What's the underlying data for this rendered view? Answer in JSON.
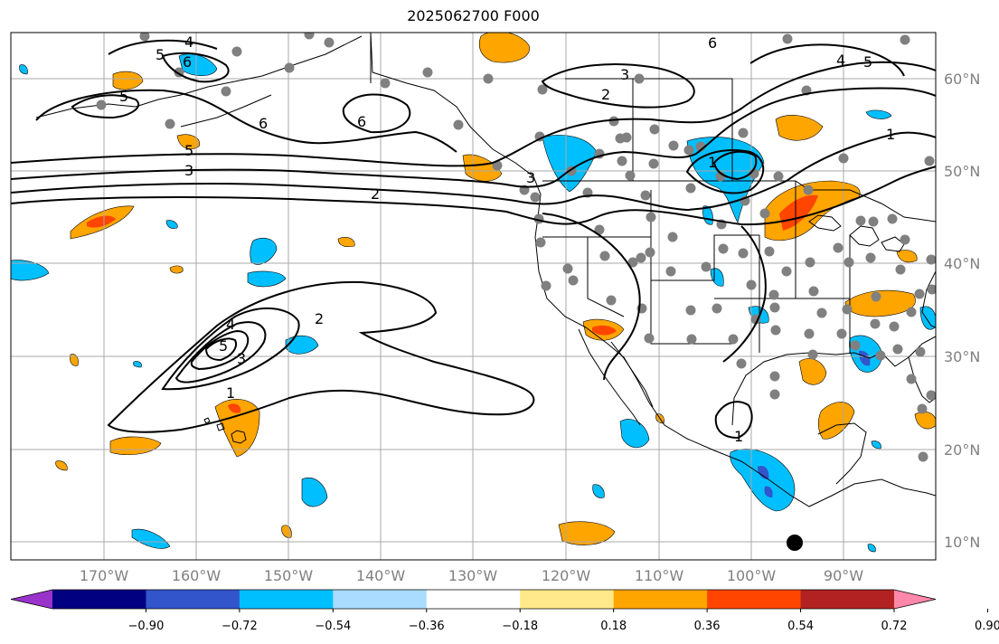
{
  "title": "2025062700 F000",
  "map": {
    "lon_labels": [
      "170°W",
      "160°W",
      "150°W",
      "140°W",
      "130°W",
      "120°W",
      "110°W",
      "100°W",
      "90°W"
    ],
    "lat_labels": [
      "60°N",
      "50°N",
      "40°N",
      "30°N",
      "20°N",
      "10°N"
    ],
    "gridline_color": "#a9a9a9",
    "coastline_color": "#000000",
    "station_marker_color": "#808080",
    "location_marker_color": "#000000",
    "contour_color": "#000000",
    "contour_labels": [
      {
        "text": "4",
        "id": "c4a"
      },
      {
        "text": "5",
        "id": "c5a"
      },
      {
        "text": "6",
        "id": "c6a"
      },
      {
        "text": "5",
        "id": "c5b"
      },
      {
        "text": "6",
        "id": "c6b"
      },
      {
        "text": "5",
        "id": "c5c"
      },
      {
        "text": "3",
        "id": "c3a"
      },
      {
        "text": "6",
        "id": "c6c"
      },
      {
        "text": "2",
        "id": "c2a"
      },
      {
        "text": "3",
        "id": "c3b"
      },
      {
        "text": "2",
        "id": "c2b"
      },
      {
        "text": "1",
        "id": "c1a"
      },
      {
        "text": "6",
        "id": "c6d"
      },
      {
        "text": "4",
        "id": "c4b"
      },
      {
        "text": "5",
        "id": "c5d"
      },
      {
        "text": "1",
        "id": "c1b"
      },
      {
        "text": "2",
        "id": "c2c"
      },
      {
        "text": "3",
        "id": "c3c"
      },
      {
        "text": "4",
        "id": "c4c"
      },
      {
        "text": "5",
        "id": "c5e"
      },
      {
        "text": "3",
        "id": "c3d"
      },
      {
        "text": "1",
        "id": "c1c"
      },
      {
        "text": "1",
        "id": "c1d"
      }
    ]
  },
  "colorbar": {
    "colors": [
      "#9933cc",
      "#000080",
      "#3355cc",
      "#00bfff",
      "#aadcff",
      "#ffffff",
      "#ffe98a",
      "#ffa500",
      "#ff4500",
      "#b22222",
      "#ff88aa"
    ],
    "labels": [
      "−0.90",
      "−0.72",
      "−0.54",
      "−0.36",
      "−0.18",
      "0.18",
      "0.36",
      "0.54",
      "0.72",
      "0.90"
    ],
    "extend": "both"
  }
}
